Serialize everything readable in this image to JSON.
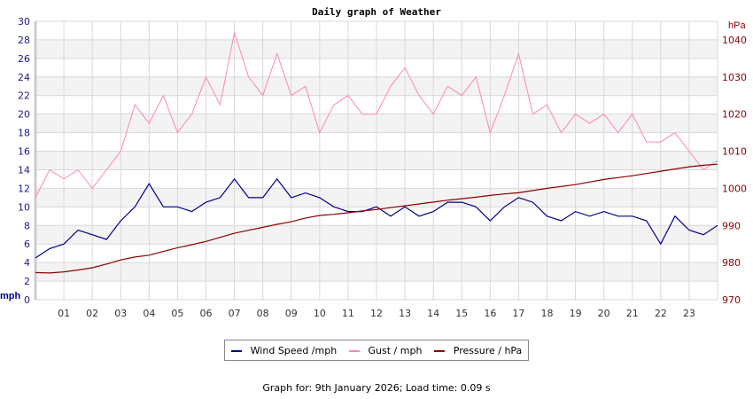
{
  "chart_data": {
    "type": "line",
    "title": "Daily graph of Weather",
    "ylabel_left": "mph",
    "ylabel_right": "hPa",
    "ylim_left": [
      0,
      30
    ],
    "ylim_right": [
      970,
      1045
    ],
    "yticks_left": [
      0,
      2,
      4,
      6,
      8,
      10,
      12,
      14,
      16,
      18,
      20,
      22,
      24,
      26,
      28,
      30
    ],
    "yticks_right": [
      970,
      980,
      990,
      1000,
      1010,
      1020,
      1030,
      1040
    ],
    "xlim": [
      0,
      24
    ],
    "xticks": [
      "01",
      "02",
      "03",
      "04",
      "05",
      "06",
      "07",
      "08",
      "09",
      "10",
      "11",
      "12",
      "13",
      "14",
      "15",
      "16",
      "17",
      "18",
      "19",
      "20",
      "21",
      "22",
      "23"
    ],
    "grid": true,
    "legend_placement": "bottom",
    "colors": {
      "wind": "#00008b",
      "gust": "#ff88aa",
      "pressure": "#8b0000",
      "band": "#f3f3f3",
      "grid": "#d8d8d8"
    },
    "x_hours": [
      0,
      0.5,
      1,
      1.5,
      2,
      2.5,
      3,
      3.5,
      4,
      4.5,
      5,
      5.5,
      6,
      6.5,
      7,
      7.5,
      8,
      8.5,
      9,
      9.5,
      10,
      10.5,
      11,
      11.5,
      12,
      12.5,
      13,
      13.5,
      14,
      14.5,
      15,
      15.5,
      16,
      16.5,
      17,
      17.5,
      18,
      18.5,
      19,
      19.5,
      20,
      20.5,
      21,
      21.5,
      22,
      22.5,
      23,
      23.5,
      24
    ],
    "series": [
      {
        "name": "Wind Speed /mph",
        "axis": "left",
        "values": [
          4.5,
          5.5,
          6,
          7.5,
          7,
          6.5,
          8.5,
          10,
          12.5,
          10,
          10,
          9.5,
          10.5,
          11,
          13,
          11,
          11,
          13,
          11,
          11.5,
          11,
          10,
          9.5,
          9.5,
          10,
          9,
          10,
          9,
          9.5,
          10.5,
          10.5,
          10,
          8.5,
          10,
          11,
          10.5,
          9,
          8.5,
          9.5,
          9,
          9.5,
          9,
          9,
          8.5,
          6,
          9,
          7.5,
          7,
          8
        ]
      },
      {
        "name": "Gust / mph",
        "axis": "left",
        "values": [
          11,
          14,
          13,
          14,
          12,
          14,
          16,
          21,
          19,
          22,
          18,
          20,
          24,
          21,
          28.8,
          24,
          22,
          26.5,
          22,
          23,
          18,
          21,
          22,
          20,
          20,
          23,
          25,
          22,
          20,
          23,
          22,
          24,
          18,
          22,
          26.5,
          20,
          21,
          18,
          20,
          19,
          20,
          18,
          20,
          17,
          17,
          18,
          16,
          14,
          15
        ]
      },
      {
        "name": "Pressure / hPa",
        "axis": "right",
        "values": [
          977.3,
          977.2,
          977.5,
          978,
          978.6,
          979.6,
          980.7,
          981.5,
          982,
          983,
          984,
          984.8,
          985.7,
          986.8,
          987.9,
          988.7,
          989.5,
          990.3,
          991,
          992,
          992.7,
          993,
          993.4,
          993.9,
          994.3,
          994.8,
          995.3,
          995.8,
          996.3,
          996.8,
          997.2,
          997.6,
          998.1,
          998.5,
          998.8,
          999.4,
          1000,
          1000.5,
          1001,
          1001.7,
          1002.4,
          1002.9,
          1003.4,
          1004,
          1004.6,
          1005.2,
          1005.8,
          1006.2,
          1006.5
        ]
      }
    ]
  },
  "legend": {
    "wind_label": "Wind Speed /mph",
    "gust_label": "Gust / mph",
    "pressure_label": "Pressure / hPa"
  },
  "footer": {
    "text": "Graph for: 9th January 2026; Load time: 0.09 s"
  }
}
